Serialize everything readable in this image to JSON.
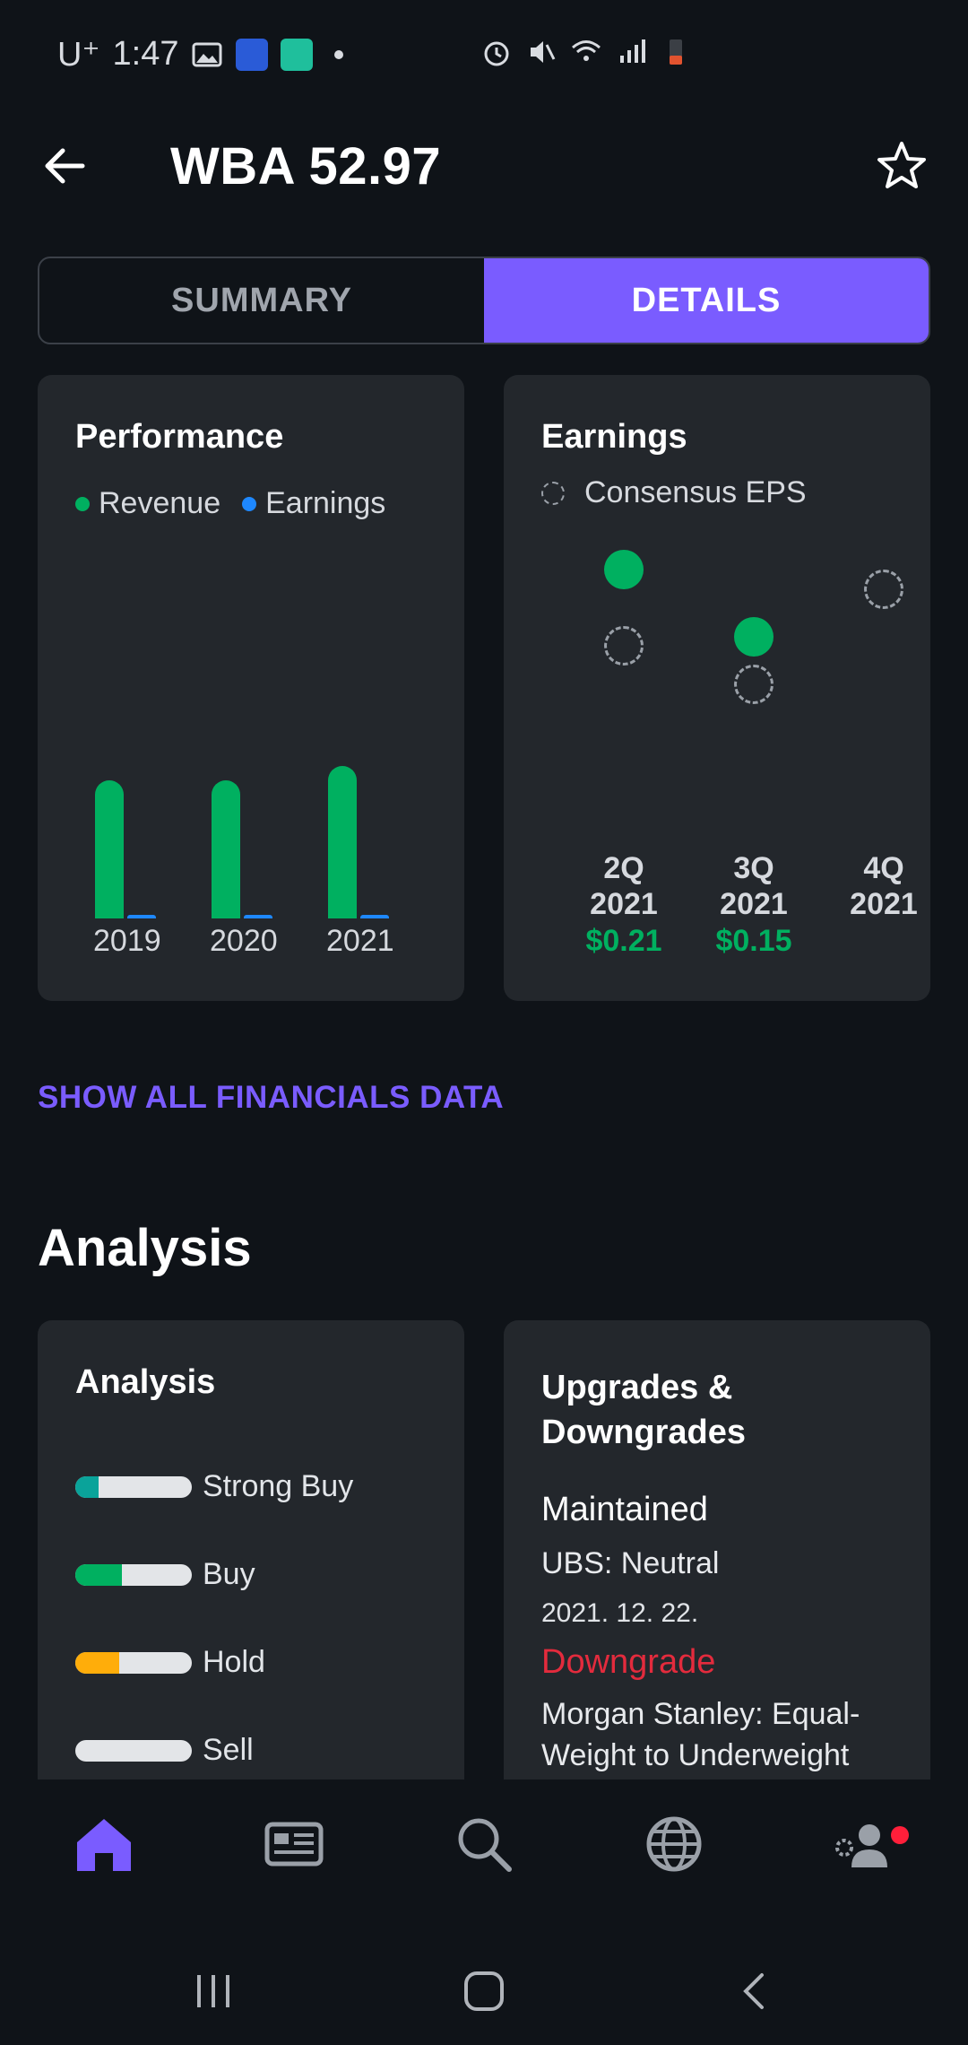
{
  "status_bar": {
    "carrier": "U⁺",
    "time": "1:47"
  },
  "header": {
    "title": "WBA 52.97"
  },
  "tabs": [
    {
      "label": "SUMMARY",
      "active": false
    },
    {
      "label": "DETAILS",
      "active": true
    }
  ],
  "performance": {
    "title": "Performance",
    "legend": [
      {
        "label": "Revenue",
        "color": "#00b060"
      },
      {
        "label": "Earnings",
        "color": "#1e88ff"
      }
    ]
  },
  "chart_data": [
    {
      "type": "bar",
      "title": "Performance",
      "categories": [
        "2019",
        "2020",
        "2021"
      ],
      "series": [
        {
          "name": "Revenue",
          "values": [
            139.5,
            139.5,
            148.6
          ],
          "color": "#00b060"
        },
        {
          "name": "Earnings",
          "values": [
            4.0,
            0.5,
            2.5
          ],
          "color": "#1e88ff"
        }
      ],
      "ylim": [
        0,
        300
      ]
    },
    {
      "type": "scatter",
      "title": "Earnings",
      "categories": [
        "2Q\n2021",
        "3Q\n2021",
        "4Q\n2021"
      ],
      "legend": "Consensus EPS",
      "series": [
        {
          "name": "Actual",
          "values": [
            1.4,
            1.05,
            null
          ]
        },
        {
          "name": "Consensus EPS",
          "values": [
            1.0,
            0.8,
            1.3
          ]
        }
      ]
    }
  ],
  "earnings": {
    "title": "Earnings",
    "legend_label": "Consensus EPS",
    "quarters": [
      {
        "q": "2Q",
        "year": "2021",
        "value": "$0.21"
      },
      {
        "q": "3Q",
        "year": "2021",
        "value": "$0.15"
      },
      {
        "q": "4Q",
        "year": "2021",
        "value": ""
      }
    ]
  },
  "show_all_link": "SHOW ALL FINANCIALS DATA",
  "analysis_section": {
    "title": "Analysis",
    "card_title": "Analysis",
    "ratings": [
      {
        "label": "Strong Buy",
        "fill": 0.2,
        "color": "#0aa39a"
      },
      {
        "label": "Buy",
        "fill": 0.4,
        "color": "#00b060"
      },
      {
        "label": "Hold",
        "fill": 0.38,
        "color": "#ffad0a"
      },
      {
        "label": "Sell",
        "fill": 0.0,
        "color": "#e3e5e8"
      }
    ]
  },
  "upgrades": {
    "title": "Upgrades & Downgrades",
    "items": [
      {
        "action": "Maintained",
        "firm": "UBS: Neutral",
        "date": "2021. 12. 22."
      },
      {
        "action": "Downgrade",
        "firm": "Morgan Stanley: Equal-Weight to Underweight",
        "date": ""
      }
    ]
  },
  "bottom_nav": [
    {
      "name": "home-icon",
      "active": true
    },
    {
      "name": "news-icon",
      "active": false
    },
    {
      "name": "search-icon",
      "active": false
    },
    {
      "name": "globe-icon",
      "active": false
    },
    {
      "name": "account-settings-icon",
      "active": false
    }
  ]
}
